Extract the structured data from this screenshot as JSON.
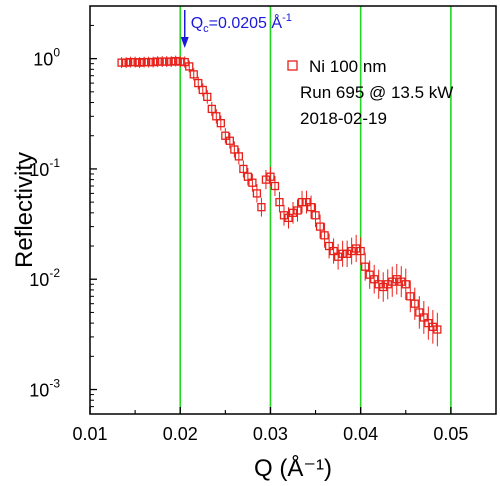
{
  "chart_data": {
    "type": "scatter",
    "title": "",
    "xlabel": "Q (Å⁻¹)",
    "ylabel": "Reflectivity",
    "xlim": [
      0.01,
      0.055
    ],
    "ylim": [
      0.0006,
      3
    ],
    "y_scale": "log",
    "x_ticks": [
      0.01,
      0.02,
      0.03,
      0.04,
      0.05
    ],
    "x_tick_labels": [
      "0.01",
      "0.02",
      "0.03",
      "0.04",
      "0.05"
    ],
    "y_ticks": [
      1,
      0.1,
      0.01,
      0.001
    ],
    "y_tick_labels": [
      {
        "base": "10",
        "exp": "0"
      },
      {
        "base": "10",
        "exp": "-1"
      },
      {
        "base": "10",
        "exp": "-2"
      },
      {
        "base": "10",
        "exp": "-3"
      }
    ],
    "vertical_lines": [
      0.02,
      0.03,
      0.04,
      0.05
    ],
    "vertical_line_color": "#22d622",
    "annotation": {
      "prefix": "Q",
      "sub": "c",
      "mid": "=0.0205 Å",
      "sup": "-1",
      "x": 0.0205,
      "color": "#1a1adb"
    },
    "legend_lines": [
      "Ni 100 nm",
      "Run 695 @ 13.5 kW",
      "2018-02-19"
    ],
    "series": [
      {
        "name": "Ni 100 nm",
        "color": "#e8201a",
        "marker": "open-square",
        "x": [
          0.0135,
          0.014,
          0.0145,
          0.015,
          0.0155,
          0.016,
          0.0165,
          0.017,
          0.0175,
          0.018,
          0.0185,
          0.019,
          0.0195,
          0.02,
          0.0205,
          0.021,
          0.0215,
          0.022,
          0.0225,
          0.023,
          0.0235,
          0.024,
          0.0245,
          0.025,
          0.0255,
          0.026,
          0.0265,
          0.027,
          0.0275,
          0.028,
          0.0285,
          0.029,
          0.0295,
          0.03,
          0.0305,
          0.031,
          0.0315,
          0.032,
          0.0325,
          0.033,
          0.0335,
          0.034,
          0.0345,
          0.035,
          0.0355,
          0.036,
          0.0365,
          0.037,
          0.0375,
          0.038,
          0.0385,
          0.039,
          0.0395,
          0.04,
          0.0405,
          0.041,
          0.0415,
          0.042,
          0.0425,
          0.043,
          0.0435,
          0.044,
          0.0445,
          0.045,
          0.0455,
          0.046,
          0.0465,
          0.047,
          0.0475,
          0.048,
          0.0485
        ],
        "y": [
          0.92,
          0.92,
          0.93,
          0.93,
          0.92,
          0.93,
          0.93,
          0.93,
          0.94,
          0.94,
          0.94,
          0.94,
          0.95,
          0.94,
          0.93,
          0.85,
          0.72,
          0.6,
          0.52,
          0.45,
          0.35,
          0.3,
          0.26,
          0.2,
          0.18,
          0.15,
          0.13,
          0.1,
          0.085,
          0.075,
          0.06,
          0.045,
          0.08,
          0.085,
          0.07,
          0.05,
          0.038,
          0.036,
          0.04,
          0.042,
          0.05,
          0.05,
          0.045,
          0.038,
          0.03,
          0.025,
          0.02,
          0.018,
          0.016,
          0.017,
          0.017,
          0.018,
          0.019,
          0.018,
          0.013,
          0.011,
          0.01,
          0.009,
          0.0085,
          0.009,
          0.0095,
          0.01,
          0.0095,
          0.009,
          0.007,
          0.006,
          0.005,
          0.0045,
          0.004,
          0.0037,
          0.0035
        ]
      }
    ]
  }
}
